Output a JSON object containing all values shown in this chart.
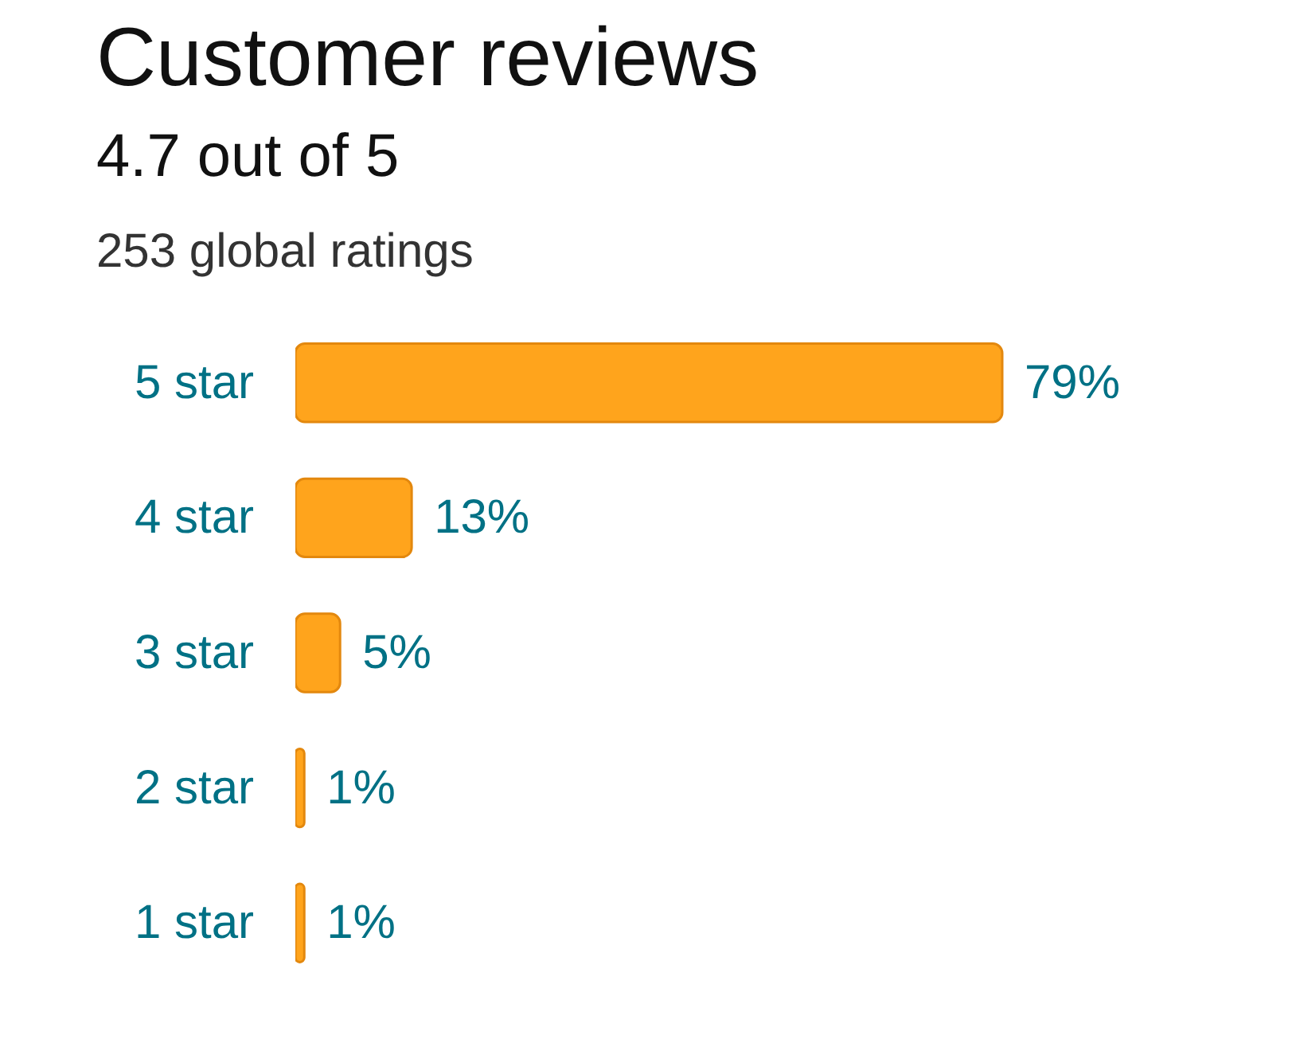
{
  "chart_data": {
    "type": "bar",
    "orientation": "horizontal",
    "title": "Customer reviews",
    "subtitle": "4.7 out of 5",
    "annotations": [
      "253 global ratings"
    ],
    "categories": [
      "5 star",
      "4 star",
      "3 star",
      "2 star",
      "1 star"
    ],
    "series": [
      {
        "color": "#ffa41c",
        "values": [
          79,
          13,
          5,
          1,
          1
        ],
        "value_labels": [
          "79%",
          "13%",
          "5%",
          "1%",
          "1%"
        ]
      }
    ],
    "tick_labels": "y"
  }
}
